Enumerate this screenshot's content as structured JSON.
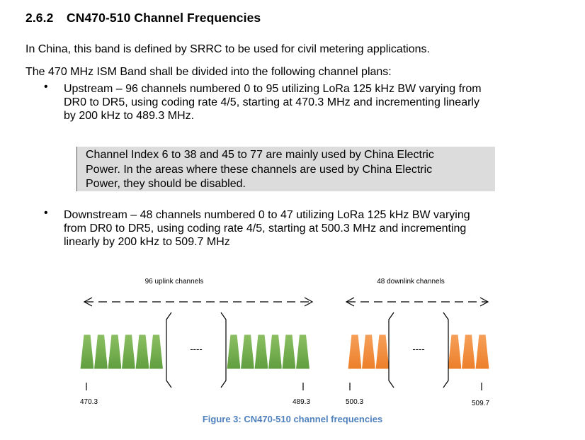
{
  "section": {
    "number": "2.6.2",
    "title": "CN470-510 Channel Frequencies"
  },
  "intro": "In China, this band is defined by SRRC to be used for civil metering applications.",
  "plans_intro": "The 470 MHz ISM Band shall be divided into the following channel plans:",
  "bullets": [
    {
      "symbol": "•",
      "lines": [
        "Upstream – 96 channels numbered 0 to 95 utilizing LoRa 125 kHz BW varying from",
        "DR0 to DR5, using coding rate 4/5, starting at 470.3 MHz and incrementing linearly",
        "by 200 kHz to 489.3 MHz."
      ]
    },
    {
      "symbol": "•",
      "lines": [
        "Downstream – 48 channels numbered 0 to 47 utilizing LoRa 125 kHz BW varying",
        "from DR0 to DR5, using coding rate 4/5, starting at 500.3 MHz and incrementing",
        "linearly by 200 kHz to 509.7 MHz"
      ]
    }
  ],
  "note": {
    "lines": [
      "Channel Index 6 to 38 and 45 to 77 are mainly used by China Electric",
      "Power. In the areas where these channels are used by China Electric",
      "Power, they should be disabled."
    ]
  },
  "diagram": {
    "uplink_label": "96 uplink channels",
    "downlink_label": "48 downlink channels",
    "uplink_color": "#6aa84f",
    "downlink_color": "#f08a36",
    "freq_labels": [
      "470.3",
      "489.3",
      "500.3",
      "509.7"
    ],
    "gap_symbol": "----"
  },
  "caption": "Figure 3: CN470-510 channel frequencies"
}
